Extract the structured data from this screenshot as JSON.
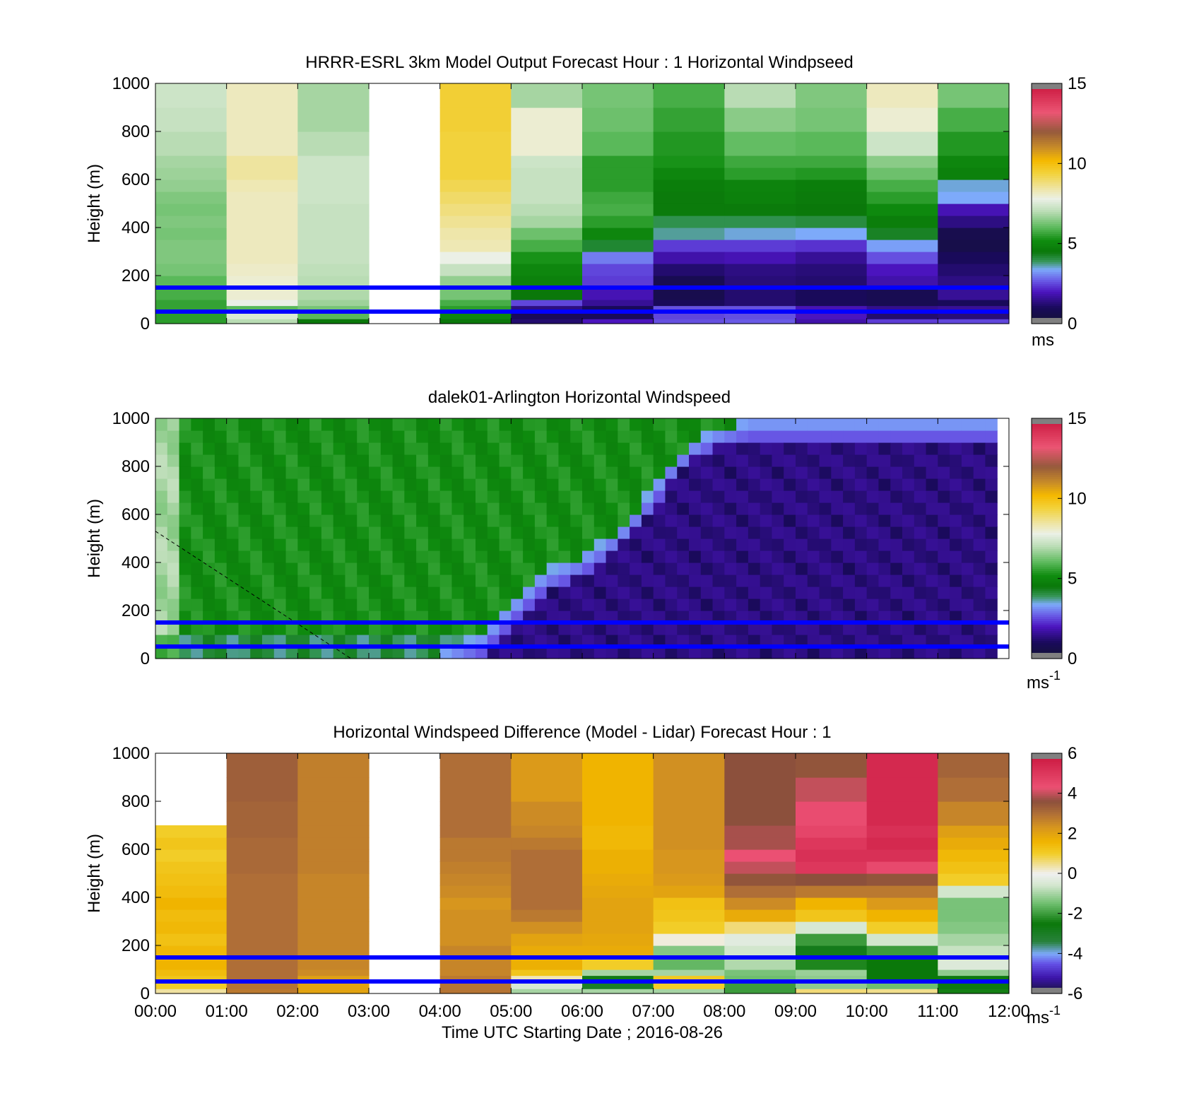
{
  "chart_data": [
    {
      "type": "heatmap",
      "title": "HRRR-ESRL 3km Model Output   Forecast Hour : 1 Horizontal Windpseed",
      "ylabel": "Height (m)",
      "xlabel": "",
      "ylim": [
        0,
        1000
      ],
      "yticks": [
        "0",
        "200",
        "400",
        "600",
        "800",
        "1000"
      ],
      "xlim": [
        0,
        12
      ],
      "colorbar": {
        "min": 0,
        "max": 15,
        "ticks": [
          "0",
          "5",
          "10",
          "15"
        ],
        "unit": "ms",
        "unit_sup": "",
        "scale": "speed"
      },
      "reference_lines": [
        {
          "height": 150,
          "color": "#0000ff"
        },
        {
          "height": 50,
          "color": "#0000ff"
        }
      ],
      "row_heights": [
        20,
        45,
        75,
        100,
        150,
        200,
        250,
        300,
        350,
        400,
        450,
        500,
        550,
        600,
        650,
        700,
        800,
        900,
        1000
      ],
      "columns": [
        [
          5.5,
          5.5,
          5.6,
          5.6,
          5.8,
          6.0,
          6.3,
          6.4,
          6.4,
          6.3,
          6.4,
          6.3,
          6.4,
          6.6,
          6.7,
          6.8,
          7.0,
          7.2,
          7.3
        ],
        [
          7.0,
          7.5,
          6.0,
          7.8,
          8.0,
          8.0,
          8.1,
          8.2,
          8.2,
          8.2,
          8.2,
          8.2,
          8.2,
          8.3,
          8.5,
          8.5,
          8.2,
          8.2,
          8.2
        ],
        [
          4.5,
          6.0,
          6.3,
          6.7,
          6.9,
          7.0,
          7.1,
          7.2,
          7.2,
          7.2,
          7.2,
          7.2,
          7.3,
          7.3,
          7.3,
          7.3,
          7.0,
          6.8,
          6.8
        ],
        [
          null,
          null,
          null,
          null,
          null,
          null,
          null,
          null,
          null,
          null,
          null,
          null,
          null,
          null,
          null,
          null,
          null,
          null,
          null
        ],
        [
          4.5,
          5.0,
          5.5,
          5.8,
          6.3,
          6.6,
          7.2,
          7.8,
          8.3,
          8.4,
          8.6,
          8.8,
          9.0,
          9.2,
          9.4,
          9.4,
          9.4,
          9.5,
          9.5
        ],
        [
          1.2,
          1.0,
          1.4,
          2.5,
          4.5,
          4.8,
          5.0,
          5.3,
          5.8,
          6.2,
          6.8,
          7.0,
          7.2,
          7.2,
          7.2,
          7.3,
          8.0,
          8.0,
          6.8
        ],
        [
          2.0,
          1.0,
          1.0,
          1.6,
          1.9,
          2.4,
          2.5,
          3.0,
          4.2,
          5.0,
          5.5,
          5.8,
          5.7,
          5.5,
          5.5,
          5.5,
          6.0,
          6.2,
          6.3
        ],
        [
          2.6,
          2.5,
          2.6,
          1.0,
          0.7,
          0.8,
          1.2,
          1.8,
          2.4,
          3.7,
          4.0,
          4.6,
          4.6,
          4.7,
          5.0,
          5.3,
          5.4,
          5.6,
          5.8
        ],
        [
          2.7,
          2.6,
          2.6,
          1.2,
          1.2,
          1.3,
          1.4,
          1.9,
          2.4,
          3.5,
          4.0,
          4.6,
          4.8,
          4.9,
          5.5,
          5.7,
          6.1,
          6.5,
          7.0
        ],
        [
          1.8,
          2.0,
          1.9,
          1.0,
          1.0,
          1.2,
          1.3,
          1.6,
          2.3,
          3.4,
          4.1,
          4.5,
          4.6,
          4.7,
          5.4,
          5.7,
          6.0,
          6.3,
          6.4
        ],
        [
          2.4,
          1.2,
          1.5,
          0.8,
          0.8,
          1.8,
          2.0,
          2.6,
          3.3,
          4.3,
          4.7,
          5.1,
          5.5,
          5.8,
          6.2,
          6.5,
          7.3,
          8.0,
          8.2
        ],
        [
          2.5,
          1.3,
          1.6,
          1.0,
          1.6,
          1.4,
          1.2,
          1.0,
          0.6,
          0.7,
          1.4,
          1.9,
          3.4,
          3.5,
          4.8,
          5.0,
          5.4,
          5.8,
          6.3
        ]
      ]
    },
    {
      "type": "heatmap",
      "title": "dalek01-Arlington  Horizontal Windspeed",
      "ylabel": "Height (m)",
      "xlabel": "",
      "ylim": [
        0,
        1000
      ],
      "yticks": [
        "0",
        "200",
        "400",
        "600",
        "800",
        "1000"
      ],
      "xlim": [
        0,
        12
      ],
      "colorbar": {
        "min": 0,
        "max": 15,
        "ticks": [
          "0",
          "5",
          "10",
          "15"
        ],
        "unit": "ms",
        "unit_sup": "-1",
        "scale": "speed"
      },
      "reference_lines": [
        {
          "height": 150,
          "color": "#0000ff"
        },
        {
          "height": 50,
          "color": "#0000ff"
        }
      ],
      "dashed_line": [
        [
          0,
          530
        ],
        [
          2.75,
          0
        ]
      ],
      "data_end_time": 11.85,
      "profile_interval_minutes": 10,
      "row_heights": [
        50,
        100,
        150,
        200,
        250,
        300,
        350,
        400,
        450,
        500,
        550,
        600,
        650,
        700,
        750,
        800,
        850,
        900,
        950,
        1000
      ],
      "front_heights": [
        0,
        0,
        0,
        0,
        0,
        0,
        0,
        0,
        0,
        0,
        0,
        0,
        0,
        0,
        0,
        0,
        0,
        0,
        0,
        0,
        0,
        0,
        0,
        0,
        40,
        60,
        80,
        100,
        150,
        200,
        250,
        300,
        350,
        380,
        400,
        420,
        450,
        480,
        520,
        560,
        620,
        680,
        750,
        820,
        870,
        910,
        940,
        960,
        975,
        990,
        1000,
        1000,
        1000,
        1000,
        1000,
        1000,
        1000,
        1000,
        1000,
        1000,
        1000,
        1000,
        1000,
        1000,
        1000,
        1000,
        1000,
        1000,
        1000,
        1000,
        1000
      ],
      "calm_core_speed": 1.0,
      "upper_speed": 5.2
    },
    {
      "type": "heatmap",
      "title": "Horizontal Windspeed Difference (Model - Lidar) Forecast Hour : 1",
      "ylabel": "Height (m)",
      "xlabel": "Time UTC  Starting Date ; 2016-08-26",
      "ylim": [
        0,
        1000
      ],
      "yticks": [
        "0",
        "200",
        "400",
        "600",
        "800",
        "1000"
      ],
      "xticks": [
        "00:00",
        "01:00",
        "02:00",
        "03:00",
        "04:00",
        "05:00",
        "06:00",
        "07:00",
        "08:00",
        "09:00",
        "10:00",
        "11:00",
        "12:00"
      ],
      "xlim": [
        0,
        12
      ],
      "colorbar": {
        "min": -6,
        "max": 6,
        "ticks": [
          "-6",
          "-4",
          "-2",
          "0",
          "2",
          "4",
          "6"
        ],
        "unit": "ms",
        "unit_sup": "-1",
        "scale": "diff"
      },
      "reference_lines": [
        {
          "height": 150,
          "color": "#0000ff"
        },
        {
          "height": 50,
          "color": "#0000ff"
        }
      ],
      "row_heights": [
        20,
        45,
        75,
        100,
        150,
        200,
        250,
        300,
        350,
        400,
        450,
        500,
        550,
        600,
        650,
        700,
        800,
        900,
        1000
      ],
      "columns": [
        [
          0.4,
          1.0,
          1.2,
          1.4,
          1.6,
          1.5,
          1.3,
          1.5,
          1.4,
          1.6,
          1.4,
          1.3,
          1.2,
          1.0,
          1.2,
          1.0,
          null,
          null,
          null
        ],
        [
          2.8,
          2.9,
          3.0,
          3.0,
          3.0,
          3.0,
          3.0,
          3.0,
          3.0,
          3.0,
          3.0,
          3.0,
          3.1,
          3.1,
          3.1,
          3.2,
          3.2,
          3.3,
          3.3
        ],
        [
          2.0,
          2.0,
          2.1,
          2.5,
          2.6,
          2.6,
          2.6,
          2.6,
          2.6,
          2.6,
          2.6,
          2.6,
          2.7,
          2.7,
          2.7,
          2.7,
          2.7,
          2.7,
          2.7
        ],
        [
          null,
          null,
          null,
          null,
          null,
          null,
          null,
          null,
          null,
          null,
          null,
          null,
          null,
          null,
          null,
          null,
          null,
          null,
          null
        ],
        [
          2.9,
          2.9,
          2.8,
          2.6,
          2.6,
          2.6,
          2.4,
          2.4,
          2.4,
          2.3,
          2.5,
          2.6,
          2.7,
          2.8,
          2.8,
          3.0,
          3.0,
          3.0,
          3.0
        ],
        [
          -1.0,
          -0.5,
          0.3,
          1.2,
          1.7,
          1.8,
          2.0,
          2.4,
          2.8,
          3.0,
          3.0,
          3.0,
          3.0,
          3.0,
          2.8,
          2.6,
          2.5,
          2.2,
          2.2
        ],
        [
          -1.0,
          -3.0,
          -2.7,
          -1.0,
          1.0,
          1.8,
          1.9,
          2.0,
          2.0,
          2.0,
          1.9,
          1.8,
          1.7,
          1.7,
          1.5,
          1.5,
          1.6,
          1.6,
          1.6
        ],
        [
          -1.0,
          1.0,
          1.1,
          -1.0,
          -1.6,
          -1.3,
          0.1,
          1.0,
          1.2,
          1.3,
          2.0,
          2.2,
          2.3,
          2.3,
          2.4,
          2.4,
          2.4,
          2.4,
          2.4
        ],
        [
          -2.0,
          -2.0,
          -1.5,
          -1.4,
          -0.9,
          -0.6,
          -0.3,
          0.6,
          1.8,
          2.5,
          3.0,
          3.5,
          4.0,
          4.3,
          3.8,
          3.8,
          3.6,
          3.6,
          3.6
        ],
        [
          0.6,
          -1.2,
          -1.2,
          -1.1,
          -2.3,
          -2.8,
          -2.0,
          -0.5,
          1.2,
          1.6,
          2.8,
          3.6,
          5.0,
          5.2,
          5.0,
          4.6,
          4.4,
          4.0,
          3.5
        ],
        [
          0.5,
          -1.5,
          -2.5,
          -2.5,
          -2.5,
          -2.0,
          -0.6,
          1.0,
          1.6,
          2.2,
          2.8,
          3.5,
          4.5,
          5.2,
          5.4,
          5.2,
          5.4,
          5.4,
          5.4
        ],
        [
          -2.4,
          -2.6,
          -2.6,
          -1.2,
          -0.4,
          -0.7,
          -1.0,
          -1.3,
          -1.4,
          -1.4,
          -0.6,
          1.0,
          1.3,
          1.5,
          1.8,
          2.1,
          2.6,
          3.0,
          3.2
        ]
      ]
    }
  ]
}
